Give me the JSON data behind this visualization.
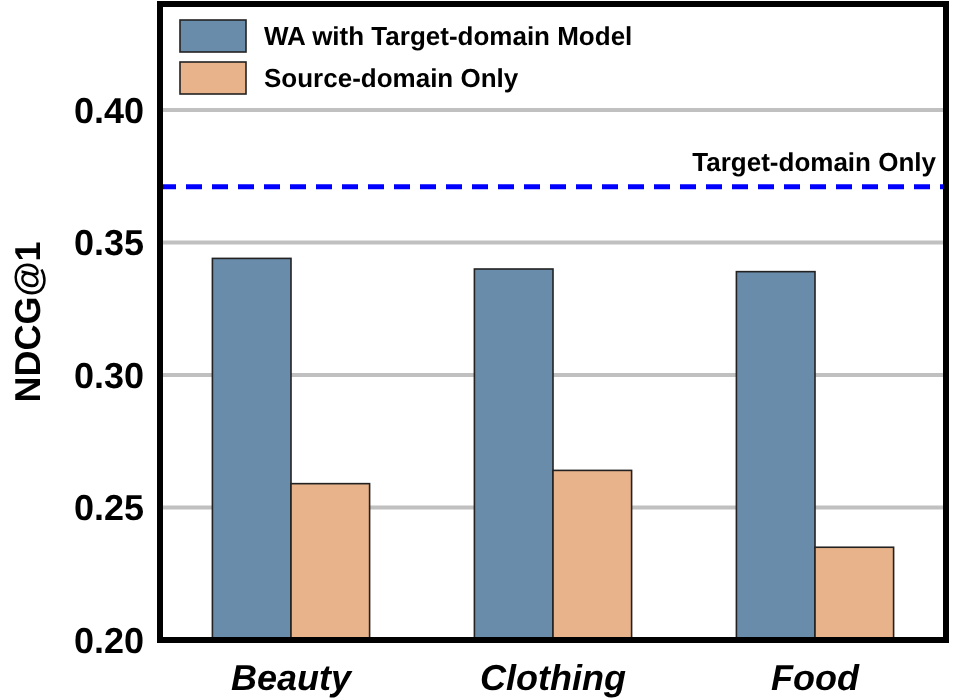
{
  "chart_data": {
    "type": "bar",
    "ylabel": "NDCG@1",
    "categories": [
      "Beauty",
      "Clothing",
      "Food"
    ],
    "series": [
      {
        "name": "WA with Target-domain Model",
        "color": "#6a8cab",
        "values": [
          0.344,
          0.34,
          0.339
        ]
      },
      {
        "name": "Source-domain Only",
        "color": "#e8b28a",
        "values": [
          0.259,
          0.264,
          0.235
        ]
      }
    ],
    "ylim": [
      0.2,
      0.44
    ],
    "yticks": [
      {
        "value": 0.2,
        "label": "0.20"
      },
      {
        "value": 0.25,
        "label": "0.25"
      },
      {
        "value": 0.3,
        "label": "0.30"
      },
      {
        "value": 0.35,
        "label": "0.35"
      },
      {
        "value": 0.4,
        "label": "0.40"
      }
    ],
    "grid": "y",
    "legend": "top left",
    "ref_lines": [
      {
        "axis": "y",
        "value": 0.371,
        "label": "Target-domain Only",
        "color": "#0000ff",
        "line_style": "dashed"
      }
    ]
  }
}
